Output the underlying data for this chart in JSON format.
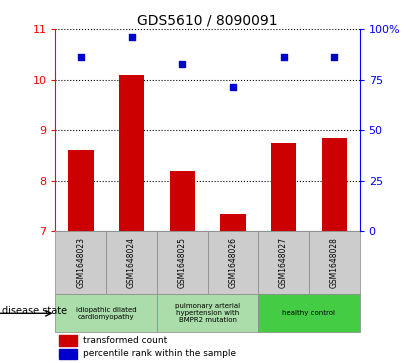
{
  "title": "GDS5610 / 8090091",
  "samples": [
    "GSM1648023",
    "GSM1648024",
    "GSM1648025",
    "GSM1648026",
    "GSM1648027",
    "GSM1648028"
  ],
  "transformed_count": [
    8.6,
    10.1,
    8.2,
    7.35,
    8.75,
    8.85
  ],
  "percentile_rank": [
    10.45,
    10.85,
    10.3,
    9.85,
    10.45,
    10.45
  ],
  "bar_color": "#cc0000",
  "dot_color": "#0000cc",
  "ylim_left": [
    7,
    11
  ],
  "yticks_left": [
    7,
    8,
    9,
    10,
    11
  ],
  "ylim_right": [
    0,
    100
  ],
  "yticks_right": [
    0,
    25,
    50,
    75,
    100
  ],
  "yticklabels_right": [
    "0",
    "25",
    "50",
    "75",
    "100%"
  ],
  "disease_groups": [
    {
      "label": "idiopathic dilated\ncardiomyopathy",
      "start": 0,
      "end": 1,
      "color": "#aaddaa"
    },
    {
      "label": "pulmonary arterial\nhypertension with\nBMPR2 mutation",
      "start": 2,
      "end": 3,
      "color": "#aaddaa"
    },
    {
      "label": "healthy control",
      "start": 4,
      "end": 5,
      "color": "#44cc44"
    }
  ],
  "legend_red_label": "transformed count",
  "legend_blue_label": "percentile rank within the sample",
  "disease_state_label": "disease state",
  "background_color": "#ffffff",
  "bar_bottom": 7,
  "bar_width": 0.5,
  "cell_gray": "#cccccc",
  "cell_border": "#888888"
}
